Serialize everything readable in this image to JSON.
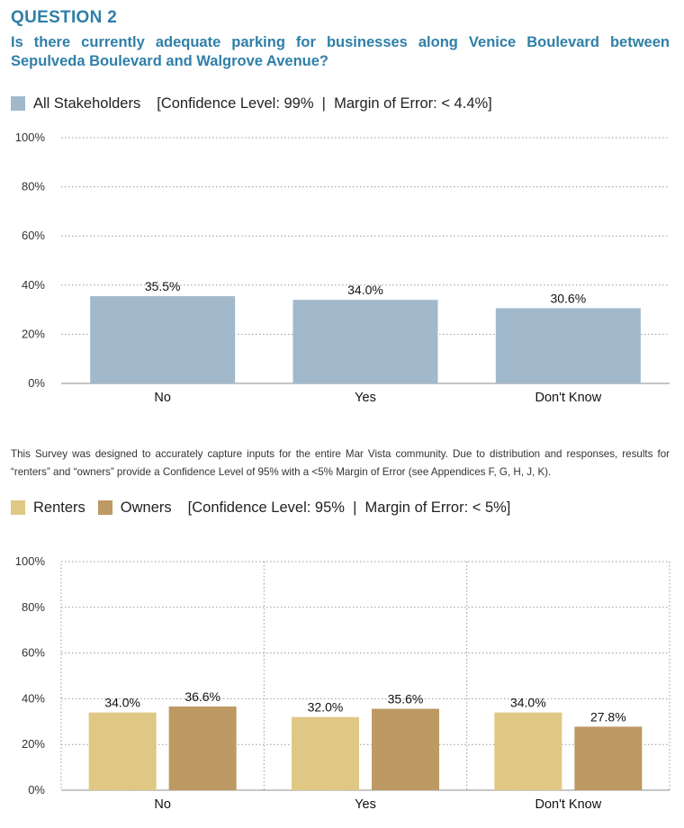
{
  "header": {
    "question_label": "QUESTION 2",
    "question_text": "Is there currently adequate parking for businesses along Venice Boulevard between Sepulveda Boulevard and Walgrove Avenue?"
  },
  "legend_top": {
    "label": "All Stakeholders",
    "confidence": "[Confidence Level: 99%  |  Margin of Error: < 4.4%]",
    "color": "#a2b9cc"
  },
  "note": "This Survey was designed to accurately capture inputs for the entire Mar Vista community. Due to distribution and responses, results for “renters” and “owners” provide a Confidence Level of 95% with a <5% Margin of Error (see Appendices F, G, H, J, K).",
  "legend_bottom": {
    "renters_label": "Renters",
    "owners_label": "Owners",
    "confidence": "[Confidence Level: 95%  |  Margin of Error: < 5%]",
    "renters_color": "#dfc884",
    "owners_color": "#bd9963"
  },
  "chart_data": [
    {
      "type": "bar",
      "categories": [
        "No",
        "Yes",
        "Don't Know"
      ],
      "series": [
        {
          "name": "All Stakeholders",
          "values": [
            35.5,
            34.0,
            30.6
          ],
          "labels": [
            "35.5%",
            "34.0%",
            "30.6%"
          ],
          "color": "#a2b9cc"
        }
      ],
      "yticks": [
        "0%",
        "20%",
        "40%",
        "60%",
        "80%",
        "100%"
      ],
      "ylim": [
        0,
        100
      ],
      "grid": true
    },
    {
      "type": "bar",
      "categories": [
        "No",
        "Yes",
        "Don't Know"
      ],
      "series": [
        {
          "name": "Renters",
          "values": [
            34.0,
            32.0,
            34.0
          ],
          "labels": [
            "34.0%",
            "32.0%",
            "34.0%"
          ],
          "color": "#dfc884"
        },
        {
          "name": "Owners",
          "values": [
            36.6,
            35.6,
            27.8
          ],
          "labels": [
            "36.6%",
            "35.6%",
            "27.8%"
          ],
          "color": "#bd9963"
        }
      ],
      "yticks": [
        "0%",
        "20%",
        "40%",
        "60%",
        "80%",
        "100%"
      ],
      "ylim": [
        0,
        100
      ],
      "grid": true
    }
  ]
}
